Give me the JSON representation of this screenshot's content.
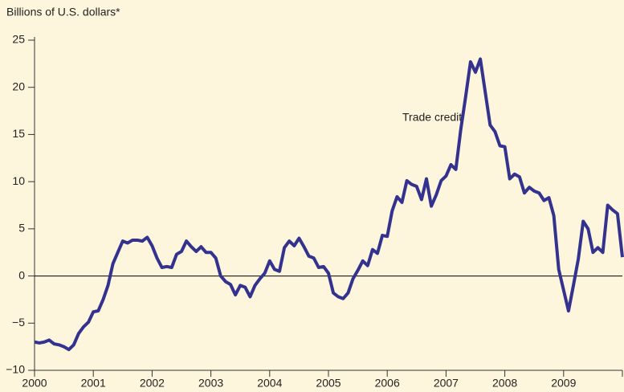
{
  "chart_data": {
    "type": "line",
    "y_axis_label": "Billions of U.S. dollars*",
    "annotation": "Trade credit",
    "categories": [
      "2000",
      null,
      null,
      null,
      null,
      null,
      null,
      null,
      null,
      null,
      null,
      null,
      "2001",
      null,
      null,
      null,
      null,
      null,
      null,
      null,
      null,
      null,
      null,
      null,
      "2002",
      null,
      null,
      null,
      null,
      null,
      null,
      null,
      null,
      null,
      null,
      null,
      "2003",
      null,
      null,
      null,
      null,
      null,
      null,
      null,
      null,
      null,
      null,
      null,
      "2004",
      null,
      null,
      null,
      null,
      null,
      null,
      null,
      null,
      null,
      null,
      null,
      "2005",
      null,
      null,
      null,
      null,
      null,
      null,
      null,
      null,
      null,
      null,
      null,
      "2006",
      null,
      null,
      null,
      null,
      null,
      null,
      null,
      null,
      null,
      null,
      null,
      "2007",
      null,
      null,
      null,
      null,
      null,
      null,
      null,
      null,
      null,
      null,
      null,
      "2008",
      null,
      null,
      null,
      null,
      null,
      null,
      null,
      null,
      null,
      null,
      null,
      "2009",
      null,
      null,
      null,
      null,
      null,
      null,
      null,
      null,
      null,
      null,
      null,
      null
    ],
    "series": [
      {
        "name": "Trade credit",
        "color": "#33338f",
        "values": [
          -7.0,
          -7.1,
          -7.0,
          -6.8,
          -7.2,
          -7.3,
          -7.5,
          -7.8,
          -7.3,
          -6.1,
          -5.4,
          -4.9,
          -3.8,
          -3.7,
          -2.5,
          -1.0,
          1.3,
          2.5,
          3.7,
          3.5,
          3.8,
          3.8,
          3.7,
          4.1,
          3.2,
          1.9,
          0.9,
          1.0,
          0.9,
          2.3,
          2.6,
          3.7,
          3.1,
          2.6,
          3.1,
          2.5,
          2.5,
          1.9,
          0.0,
          -0.6,
          -0.9,
          -2.0,
          -1.0,
          -1.2,
          -2.2,
          -1.0,
          -0.3,
          0.3,
          1.6,
          0.7,
          0.5,
          3.0,
          3.7,
          3.2,
          4.0,
          3.1,
          2.1,
          1.9,
          0.9,
          1.0,
          0.3,
          -1.8,
          -2.2,
          -2.4,
          -1.8,
          -0.3,
          0.6,
          1.6,
          1.1,
          2.8,
          2.4,
          4.3,
          4.2,
          6.9,
          8.4,
          7.8,
          10.1,
          9.7,
          9.5,
          8.1,
          10.3,
          7.4,
          8.6,
          10.1,
          10.6,
          11.8,
          11.3,
          15.5,
          19.0,
          22.7,
          21.6,
          23.0,
          19.5,
          16.0,
          15.3,
          13.8,
          13.7,
          10.3,
          10.8,
          10.5,
          8.8,
          9.4,
          9.0,
          8.8,
          8.0,
          8.3,
          6.4,
          0.7,
          -1.5,
          -3.7,
          -1.0,
          1.8,
          5.8,
          5.0,
          2.5,
          3.0,
          2.5,
          7.5,
          7.0,
          6.6,
          2.0
        ]
      }
    ],
    "ylim": [
      -10,
      25
    ],
    "yticks": [
      {
        "value": -10,
        "label": "−10"
      },
      {
        "value": -5,
        "label": "−5"
      },
      0,
      5,
      10,
      15,
      20,
      25
    ],
    "zero_line": true
  }
}
